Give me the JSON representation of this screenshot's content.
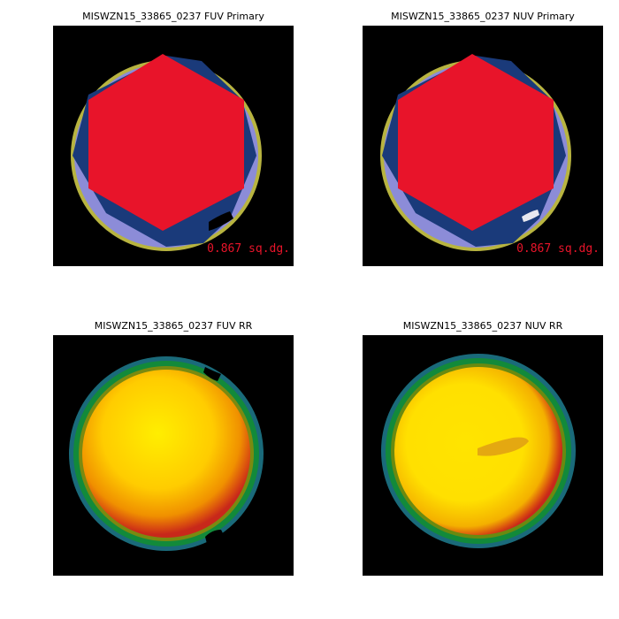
{
  "panels": [
    {
      "title": "MISWZN15_33865_0237 FUV Primary",
      "area_label": "0.867 sq.dg."
    },
    {
      "title": "MISWZN15_33865_0237 NUV Primary",
      "area_label": "0.867 sq.dg."
    },
    {
      "title": "MISWZN15_33865_0237 FUV RR"
    },
    {
      "title": "MISWZN15_33865_0237 NUV RR"
    }
  ],
  "colors": {
    "background": "#000000",
    "hexagon": "#e8142a",
    "ring_light": "#8c8cd8",
    "ring_dark": "#1a3a7a",
    "ring_olive": "#b8b440",
    "rr_center": "#ffee00",
    "rr_edge_red": "#c8281a",
    "rr_ring_green": "#128a3a",
    "rr_ring_teal": "#1a6a7a"
  }
}
